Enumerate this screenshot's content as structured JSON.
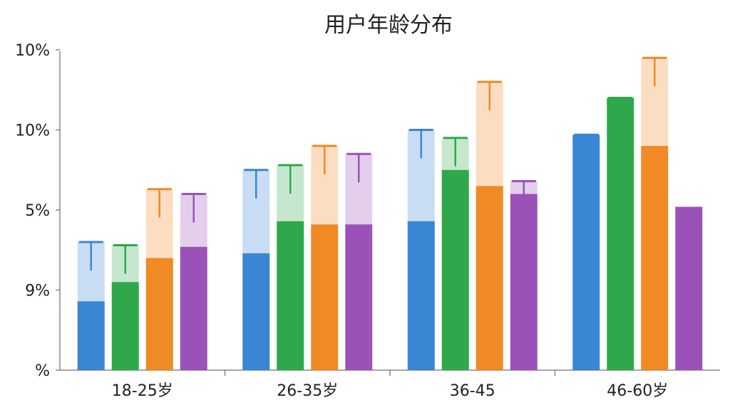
{
  "chart_data": {
    "type": "bar",
    "title": "用户年龄分布",
    "xlabel": "",
    "ylabel": "",
    "categories": [
      "18-25岁",
      "26-35岁",
      "36-45",
      "46-60岁"
    ],
    "y_tick_labels": [
      "%",
      "9%",
      "5%",
      "10%",
      "10%"
    ],
    "ylim": [
      0,
      20
    ],
    "grid": false,
    "legend": "none",
    "series": [
      {
        "color": "#3a86d4",
        "values": [
          4.3,
          7.3,
          9.3,
          14.7
        ],
        "error_top": [
          8.0,
          12.5,
          15.0,
          14.7
        ]
      },
      {
        "color": "#2ea84a",
        "values": [
          5.5,
          9.3,
          12.5,
          17.0
        ],
        "error_top": [
          7.8,
          12.8,
          14.5,
          17.0
        ]
      },
      {
        "color": "#f08a24",
        "values": [
          7.0,
          9.1,
          11.5,
          14.0
        ],
        "error_top": [
          11.3,
          14.0,
          18.0,
          19.5
        ]
      },
      {
        "color": "#9b52b8",
        "values": [
          7.7,
          9.1,
          11.0,
          10.2
        ],
        "error_top": [
          11.0,
          13.5,
          11.8,
          9.0
        ]
      }
    ]
  }
}
